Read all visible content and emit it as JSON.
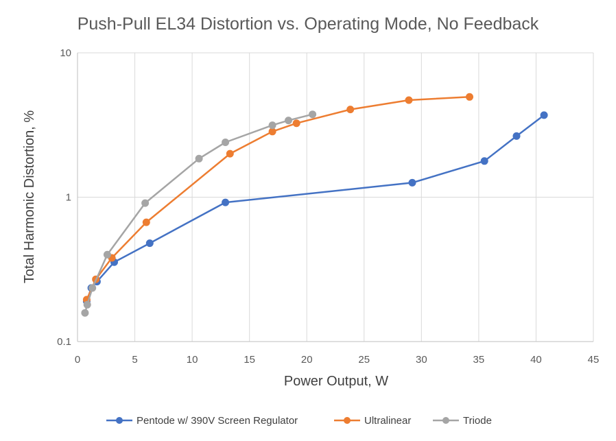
{
  "chart_data": {
    "type": "line",
    "title": "Push-Pull EL34 Distortion vs. Operating Mode, No Feedback",
    "xlabel": "Power Output, W",
    "ylabel": "Total Harmonic Distortion, %",
    "xlim": [
      0,
      45
    ],
    "ylim": [
      0.1,
      10
    ],
    "y_scale": "log",
    "x_ticks": [
      0,
      5,
      10,
      15,
      20,
      25,
      30,
      35,
      40,
      45
    ],
    "y_ticks": [
      0.1,
      1,
      10
    ],
    "x_tick_labels": [
      "0",
      "5",
      "10",
      "15",
      "20",
      "25",
      "30",
      "35",
      "40",
      "45"
    ],
    "y_tick_labels": [
      "0.1",
      "1",
      "10"
    ],
    "grid": true,
    "legend_position": "bottom",
    "series": [
      {
        "name": "Pentode w/ 390V Screen Regulator",
        "color": "#4472C4",
        "x": [
          0.8,
          1.2,
          1.7,
          3.2,
          6.3,
          12.9,
          29.2,
          35.5,
          38.3,
          40.7
        ],
        "y": [
          0.19,
          0.235,
          0.26,
          0.355,
          0.48,
          0.92,
          1.26,
          1.78,
          2.65,
          3.7
        ]
      },
      {
        "name": "Ultralinear",
        "color": "#ED7D31",
        "x": [
          0.8,
          1.6,
          3.0,
          6.0,
          13.3,
          17.0,
          19.1,
          23.8,
          28.9,
          34.2
        ],
        "y": [
          0.195,
          0.27,
          0.38,
          0.67,
          2.0,
          2.85,
          3.25,
          4.05,
          4.7,
          4.95
        ]
      },
      {
        "name": "Triode",
        "color": "#A5A5A5",
        "x": [
          0.65,
          0.85,
          1.3,
          2.6,
          5.9,
          10.6,
          12.9,
          17.0,
          18.4,
          20.5
        ],
        "y": [
          0.158,
          0.18,
          0.235,
          0.4,
          0.91,
          1.85,
          2.4,
          3.15,
          3.4,
          3.75
        ]
      }
    ]
  }
}
